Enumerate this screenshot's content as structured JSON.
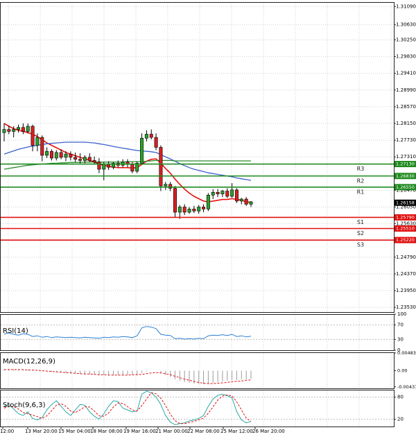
{
  "chart_data": [
    {
      "type": "candlestick",
      "title": "",
      "yticks": [
        "1.31090",
        "1.30630",
        "1.30250",
        "1.29830",
        "1.29410",
        "1.28990",
        "1.28570",
        "1.28150",
        "1.27730",
        "1.27310",
        "1.26470",
        "1.26050",
        "1.25630",
        "1.25210",
        "1.24790",
        "1.24370",
        "1.23950",
        "1.23530"
      ],
      "ylim": [
        1.2341,
        1.312
      ],
      "xticks": [
        "12:00",
        "13 Mar 20:00",
        "15 Mar 04:00",
        "18 Mar 08:00",
        "19 Mar 16:00",
        "21 Mar 00:00",
        "22 Mar 08:00",
        "25 Mar 12:00",
        "26 Mar 20:00"
      ],
      "current_price": "1.26158",
      "candles": [
        {
          "o": 1.2792,
          "h": 1.2815,
          "l": 1.277,
          "c": 1.28
        },
        {
          "o": 1.28,
          "h": 1.281,
          "l": 1.2788,
          "c": 1.2795
        },
        {
          "o": 1.2795,
          "h": 1.2808,
          "l": 1.278,
          "c": 1.28
        },
        {
          "o": 1.28,
          "h": 1.2812,
          "l": 1.2792,
          "c": 1.2805
        },
        {
          "o": 1.2805,
          "h": 1.2815,
          "l": 1.2788,
          "c": 1.2795
        },
        {
          "o": 1.2795,
          "h": 1.2815,
          "l": 1.279,
          "c": 1.2808
        },
        {
          "o": 1.2808,
          "h": 1.2812,
          "l": 1.2745,
          "c": 1.276
        },
        {
          "o": 1.276,
          "h": 1.279,
          "l": 1.2745,
          "c": 1.278
        },
        {
          "o": 1.278,
          "h": 1.2785,
          "l": 1.272,
          "c": 1.2735
        },
        {
          "o": 1.2735,
          "h": 1.2755,
          "l": 1.2728,
          "c": 1.2745
        },
        {
          "o": 1.2745,
          "h": 1.275,
          "l": 1.2722,
          "c": 1.2728
        },
        {
          "o": 1.2728,
          "h": 1.2748,
          "l": 1.2722,
          "c": 1.2742
        },
        {
          "o": 1.2742,
          "h": 1.275,
          "l": 1.2725,
          "c": 1.273
        },
        {
          "o": 1.273,
          "h": 1.2745,
          "l": 1.272,
          "c": 1.2738
        },
        {
          "o": 1.2738,
          "h": 1.2745,
          "l": 1.2722,
          "c": 1.273
        },
        {
          "o": 1.273,
          "h": 1.2742,
          "l": 1.2718,
          "c": 1.2725
        },
        {
          "o": 1.2725,
          "h": 1.274,
          "l": 1.2715,
          "c": 1.2722
        },
        {
          "o": 1.2722,
          "h": 1.2735,
          "l": 1.2715,
          "c": 1.273
        },
        {
          "o": 1.273,
          "h": 1.274,
          "l": 1.2718,
          "c": 1.2722
        },
        {
          "o": 1.2722,
          "h": 1.2732,
          "l": 1.2712,
          "c": 1.2718
        },
        {
          "o": 1.2718,
          "h": 1.2728,
          "l": 1.269,
          "c": 1.27
        },
        {
          "o": 1.27,
          "h": 1.2718,
          "l": 1.2672,
          "c": 1.2712
        },
        {
          "o": 1.2712,
          "h": 1.272,
          "l": 1.2698,
          "c": 1.2705
        },
        {
          "o": 1.2705,
          "h": 1.2718,
          "l": 1.27,
          "c": 1.2715
        },
        {
          "o": 1.2715,
          "h": 1.2722,
          "l": 1.2705,
          "c": 1.271
        },
        {
          "o": 1.271,
          "h": 1.2725,
          "l": 1.2705,
          "c": 1.2718
        },
        {
          "o": 1.2718,
          "h": 1.2725,
          "l": 1.2705,
          "c": 1.2712
        },
        {
          "o": 1.2712,
          "h": 1.2718,
          "l": 1.269,
          "c": 1.2695
        },
        {
          "o": 1.2695,
          "h": 1.272,
          "l": 1.269,
          "c": 1.2715
        },
        {
          "o": 1.2715,
          "h": 1.279,
          "l": 1.2712,
          "c": 1.2778
        },
        {
          "o": 1.2778,
          "h": 1.2798,
          "l": 1.277,
          "c": 1.2788
        },
        {
          "o": 1.2788,
          "h": 1.28,
          "l": 1.2775,
          "c": 1.278
        },
        {
          "o": 1.278,
          "h": 1.279,
          "l": 1.2748,
          "c": 1.2755
        },
        {
          "o": 1.2755,
          "h": 1.276,
          "l": 1.2645,
          "c": 1.2658
        },
        {
          "o": 1.2658,
          "h": 1.2668,
          "l": 1.2648,
          "c": 1.2662
        },
        {
          "o": 1.2662,
          "h": 1.2668,
          "l": 1.2645,
          "c": 1.2652
        },
        {
          "o": 1.2652,
          "h": 1.2658,
          "l": 1.258,
          "c": 1.2592
        },
        {
          "o": 1.2592,
          "h": 1.261,
          "l": 1.2575,
          "c": 1.2605
        },
        {
          "o": 1.2605,
          "h": 1.2612,
          "l": 1.2585,
          "c": 1.2592
        },
        {
          "o": 1.2592,
          "h": 1.2605,
          "l": 1.2588,
          "c": 1.26
        },
        {
          "o": 1.26,
          "h": 1.2608,
          "l": 1.259,
          "c": 1.2595
        },
        {
          "o": 1.2595,
          "h": 1.261,
          "l": 1.2588,
          "c": 1.2605
        },
        {
          "o": 1.2605,
          "h": 1.2612,
          "l": 1.2592,
          "c": 1.26
        },
        {
          "o": 1.26,
          "h": 1.264,
          "l": 1.2595,
          "c": 1.2635
        },
        {
          "o": 1.2635,
          "h": 1.265,
          "l": 1.2625,
          "c": 1.2642
        },
        {
          "o": 1.2642,
          "h": 1.265,
          "l": 1.263,
          "c": 1.2638
        },
        {
          "o": 1.2638,
          "h": 1.2648,
          "l": 1.263,
          "c": 1.2645
        },
        {
          "o": 1.2645,
          "h": 1.2652,
          "l": 1.2628,
          "c": 1.2632
        },
        {
          "o": 1.2632,
          "h": 1.2665,
          "l": 1.2628,
          "c": 1.2648
        },
        {
          "o": 1.2648,
          "h": 1.2652,
          "l": 1.2615,
          "c": 1.262
        },
        {
          "o": 1.262,
          "h": 1.2628,
          "l": 1.2612,
          "c": 1.2625
        },
        {
          "o": 1.2625,
          "h": 1.263,
          "l": 1.2608,
          "c": 1.2612
        },
        {
          "o": 1.2612,
          "h": 1.262,
          "l": 1.2605,
          "c": 1.2618
        }
      ],
      "series": [
        {
          "color": "#e8120c",
          "values": [
            1.2815,
            1.2808,
            1.2802,
            1.2798,
            1.2795,
            1.2792,
            1.2788,
            1.2782,
            1.2774,
            1.2766,
            1.276,
            1.2754,
            1.2748,
            1.2742,
            1.2738,
            1.2734,
            1.273,
            1.2726,
            1.2722,
            1.2718,
            1.2713,
            1.271,
            1.2707,
            1.2705,
            1.2704,
            1.2704,
            1.2704,
            1.2703,
            1.2704,
            1.2712,
            1.272,
            1.2725,
            1.2726,
            1.2715,
            1.2702,
            1.269,
            1.2675,
            1.2662,
            1.265,
            1.264,
            1.2632,
            1.2626,
            1.262,
            1.2618,
            1.262,
            1.2622,
            1.2624,
            1.2624,
            1.2626,
            1.2624,
            1.2622,
            1.2618,
            1.2617
          ]
        },
        {
          "color": "#3a5fcd",
          "values": [
            1.2738,
            1.2742,
            1.2746,
            1.275,
            1.2753,
            1.2756,
            1.2758,
            1.276,
            1.2762,
            1.2764,
            1.2765,
            1.2766,
            1.2767,
            1.2768,
            1.2768,
            1.2768,
            1.2768,
            1.2768,
            1.2767,
            1.2766,
            1.2764,
            1.2762,
            1.276,
            1.2757,
            1.2755,
            1.2753,
            1.2751,
            1.2749,
            1.2747,
            1.2746,
            1.2745,
            1.2744,
            1.2742,
            1.2737,
            1.2731,
            1.2726,
            1.272,
            1.2714,
            1.2709,
            1.2704,
            1.27,
            1.2697,
            1.2694,
            1.2691,
            1.2689,
            1.2687,
            1.2685,
            1.2683,
            1.2681,
            1.2678,
            1.2676,
            1.2674,
            1.2672
          ]
        },
        {
          "color": "#2a8c2a",
          "values": [
            1.27,
            1.2702,
            1.2704,
            1.2706,
            1.2708,
            1.271,
            1.2711,
            1.2712,
            1.2713,
            1.2714,
            1.2715,
            1.2715,
            1.2716,
            1.2716,
            1.2717,
            1.2717,
            1.2717,
            1.2718,
            1.2718,
            1.2718,
            1.2718,
            1.2718,
            1.2718,
            1.2718,
            1.2718,
            1.2718,
            1.2719,
            1.2719,
            1.2719,
            1.2719,
            1.272,
            1.2721,
            1.2722,
            1.2722,
            1.2722,
            1.2722,
            1.2721,
            1.2721,
            1.2721,
            1.2721,
            1.2721,
            1.2721,
            1.2721,
            1.2721,
            1.2721,
            1.2721,
            1.2721,
            1.2721,
            1.2721,
            1.2721,
            1.2721,
            1.2721,
            1.2721
          ]
        }
      ],
      "levels": [
        {
          "label": "R3",
          "price": "1.27130",
          "value": 1.2713,
          "color": "#1f8a1f"
        },
        {
          "label": "R2",
          "price": "1.26830",
          "value": 1.2683,
          "color": "#1f8a1f"
        },
        {
          "label": "R1",
          "price": "1.26550",
          "value": 1.2655,
          "color": "#1f8a1f"
        },
        {
          "label": "S1",
          "price": "1.25790",
          "value": 1.2579,
          "color": "#e01010"
        },
        {
          "label": "S2",
          "price": "1.25510",
          "value": 1.2551,
          "color": "#e01010"
        },
        {
          "label": "S3",
          "price": "1.25220",
          "value": 1.2522,
          "color": "#e01010"
        }
      ]
    },
    {
      "type": "line",
      "label": "RSI(14)",
      "yticks": [
        "100",
        "70",
        "30",
        "0"
      ],
      "ylim": [
        0,
        100
      ],
      "series": [
        {
          "color": "#2a7fd4",
          "values": [
            45,
            48,
            44,
            42,
            46,
            44,
            38,
            40,
            36,
            38,
            35,
            37,
            36,
            35,
            36,
            35,
            34,
            36,
            35,
            34,
            33,
            36,
            35,
            37,
            36,
            38,
            37,
            35,
            40,
            62,
            66,
            64,
            60,
            44,
            42,
            41,
            32,
            33,
            31,
            32,
            31,
            33,
            32,
            40,
            42,
            41,
            43,
            41,
            44,
            38,
            40,
            37,
            39
          ]
        }
      ]
    },
    {
      "type": "bar",
      "label": "MACD(12,26,9)",
      "yticks": [
        "0.00483",
        "0.00",
        "-0.004377"
      ],
      "ylim": [
        -0.0048,
        0.005
      ],
      "values": [
        0.0004,
        0.0004,
        0.0004,
        0.0003,
        0.0003,
        0.0003,
        0.0002,
        0.0001,
        -0.0001,
        -0.0002,
        -0.0003,
        -0.0004,
        -0.0005,
        -0.0006,
        -0.0007,
        -0.0008,
        -0.0009,
        -0.001,
        -0.001,
        -0.0011,
        -0.0012,
        -0.0012,
        -0.0012,
        -0.0012,
        -0.0012,
        -0.0011,
        -0.0011,
        -0.0011,
        -0.001,
        -0.0006,
        -0.0002,
        0.0,
        0.0,
        -0.0006,
        -0.0012,
        -0.0017,
        -0.0023,
        -0.0027,
        -0.0031,
        -0.0033,
        -0.0035,
        -0.0036,
        -0.0037,
        -0.0035,
        -0.0033,
        -0.0031,
        -0.0029,
        -0.0027,
        -0.0025,
        -0.0025,
        -0.0024,
        -0.0023,
        -0.0022
      ],
      "signal": {
        "color": "#e01010",
        "values": [
          0.0003,
          0.0003,
          0.0003,
          0.0003,
          0.0003,
          0.0002,
          0.0002,
          0.0001,
          0.0,
          -0.0001,
          -0.0002,
          -0.0003,
          -0.0004,
          -0.0005,
          -0.0006,
          -0.0007,
          -0.0008,
          -0.0009,
          -0.0009,
          -0.001,
          -0.0011,
          -0.0011,
          -0.0012,
          -0.0012,
          -0.0012,
          -0.0012,
          -0.0012,
          -0.0011,
          -0.0011,
          -0.001,
          -0.0008,
          -0.0006,
          -0.0005,
          -0.0006,
          -0.0008,
          -0.0011,
          -0.0015,
          -0.0019,
          -0.0023,
          -0.0026,
          -0.0029,
          -0.0032,
          -0.0034,
          -0.0035,
          -0.0035,
          -0.0034,
          -0.0033,
          -0.0032,
          -0.003,
          -0.0029,
          -0.0028,
          -0.0026,
          -0.0025
        ]
      }
    },
    {
      "type": "line",
      "label": "Stoch(9,6,3)",
      "yticks": [
        "80",
        "20"
      ],
      "ylim": [
        0,
        100
      ],
      "series": [
        {
          "color": "#2aa7a7",
          "values": [
            55,
            60,
            48,
            35,
            30,
            40,
            22,
            18,
            25,
            45,
            60,
            70,
            55,
            40,
            30,
            45,
            60,
            58,
            40,
            28,
            20,
            35,
            55,
            70,
            68,
            50,
            45,
            40,
            42,
            88,
            96,
            92,
            80,
            60,
            30,
            12,
            5,
            8,
            10,
            15,
            18,
            22,
            30,
            55,
            75,
            85,
            88,
            84,
            78,
            40,
            18,
            10,
            14
          ]
        },
        {
          "color": "#e01010",
          "values": [
            50,
            55,
            54,
            48,
            38,
            35,
            31,
            27,
            22,
            29,
            43,
            58,
            62,
            55,
            42,
            38,
            45,
            54,
            53,
            42,
            29,
            28,
            37,
            53,
            64,
            63,
            54,
            45,
            42,
            57,
            75,
            92,
            89,
            77,
            57,
            34,
            16,
            8,
            8,
            11,
            14,
            18,
            23,
            36,
            53,
            72,
            83,
            86,
            83,
            67,
            45,
            23,
            14
          ]
        }
      ]
    }
  ]
}
